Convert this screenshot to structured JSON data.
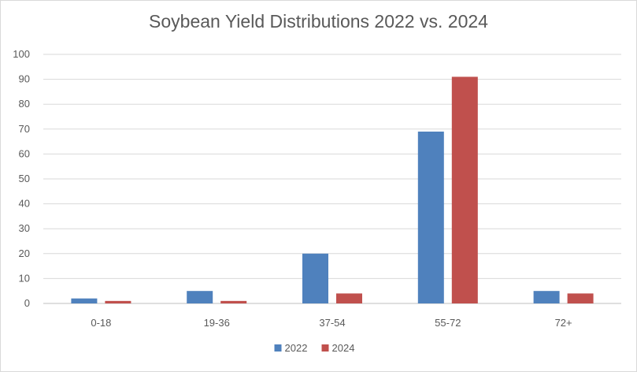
{
  "chart_data": {
    "type": "bar",
    "title": "Soybean Yield Distributions 2022 vs. 2024",
    "xlabel": "",
    "ylabel": "",
    "categories": [
      "0-18",
      "19-36",
      "37-54",
      "55-72",
      "72+"
    ],
    "series": [
      {
        "name": "2022",
        "color": "#4f81bd",
        "values": [
          2,
          5,
          20,
          69,
          5
        ]
      },
      {
        "name": "2024",
        "color": "#c0504d",
        "values": [
          1,
          1,
          4,
          91,
          4
        ]
      }
    ],
    "ylim": [
      0,
      100
    ],
    "yticks": [
      0,
      10,
      20,
      30,
      40,
      50,
      60,
      70,
      80,
      90,
      100
    ],
    "grid": true,
    "legend": "bottom-center"
  }
}
